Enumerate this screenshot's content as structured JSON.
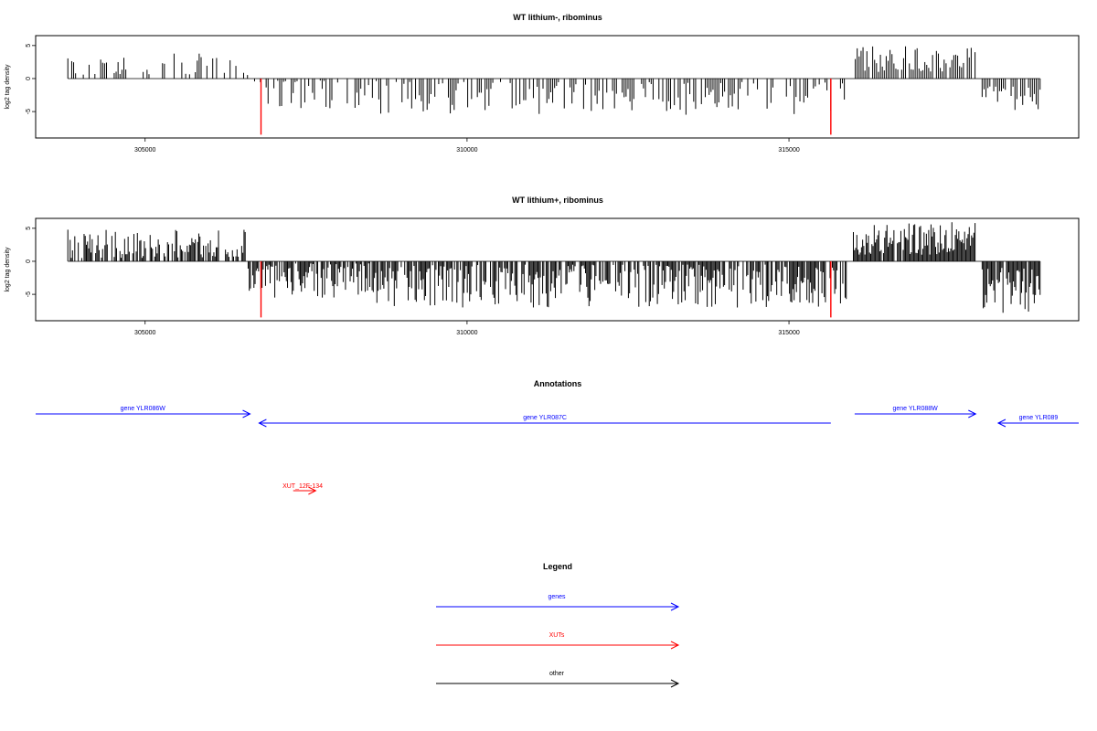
{
  "chart_data": [
    {
      "type": "bar",
      "title": "WT lithium-, ribominus",
      "ylabel": "log2 tag density",
      "xlim": [
        303300,
        319500
      ],
      "ylim": [
        -9,
        6.5
      ],
      "xticks": [
        305000,
        310000,
        315000
      ],
      "xtick_labels": [
        "305000",
        "310000",
        "315000"
      ],
      "yticks": [
        5,
        0,
        -5
      ],
      "ytick_labels": [
        "5",
        "0",
        "-5"
      ],
      "grid": false,
      "bar_color": "#000000",
      "highlight_color": "#ff0000",
      "highlights": [
        {
          "x": 306800,
          "value": -8.5
        },
        {
          "x": 315650,
          "value": -8.5
        }
      ],
      "bars_x_start": 303800,
      "bars_x_step": 30,
      "segments": [
        {
          "from": 303800,
          "to": 306600,
          "density": 0.35,
          "min": 0.5,
          "max": 3.8,
          "sign": 1
        },
        {
          "from": 306700,
          "to": 308600,
          "density": 0.55,
          "min": -4.5,
          "max": -0.3,
          "sign": -1
        },
        {
          "from": 308600,
          "to": 315900,
          "density": 0.6,
          "min": -5.5,
          "max": -0.5,
          "sign": -1
        },
        {
          "from": 316000,
          "to": 317900,
          "density": 0.85,
          "min": 1.0,
          "max": 5.0,
          "sign": 1
        },
        {
          "from": 318000,
          "to": 318900,
          "density": 0.8,
          "min": -5.0,
          "max": -1.0,
          "sign": -1
        }
      ],
      "seed": 17
    },
    {
      "type": "bar",
      "title": "WT lithium+, ribominus",
      "ylabel": "log2 tag density",
      "xlim": [
        303300,
        319500
      ],
      "ylim": [
        -9,
        6.5
      ],
      "xticks": [
        305000,
        310000,
        315000
      ],
      "xtick_labels": [
        "305000",
        "310000",
        "315000"
      ],
      "yticks": [
        5,
        0,
        -5
      ],
      "ytick_labels": [
        "5",
        "0",
        "-5"
      ],
      "grid": false,
      "bar_color": "#000000",
      "highlight_color": "#ff0000",
      "highlights": [
        {
          "x": 306800,
          "value": -8.5
        },
        {
          "x": 315650,
          "value": -8.5
        }
      ],
      "bars_x_start": 303800,
      "bars_x_step": 18,
      "segments": [
        {
          "from": 303800,
          "to": 306600,
          "density": 0.65,
          "min": 0.5,
          "max": 4.8,
          "sign": 1
        },
        {
          "from": 306600,
          "to": 308600,
          "density": 0.8,
          "min": -5.5,
          "max": -0.3,
          "sign": -1
        },
        {
          "from": 308600,
          "to": 315900,
          "density": 0.8,
          "min": -7.0,
          "max": -0.5,
          "sign": -1
        },
        {
          "from": 316000,
          "to": 317900,
          "density": 0.95,
          "min": 1.0,
          "max": 6.0,
          "sign": 1
        },
        {
          "from": 318000,
          "to": 318900,
          "density": 0.95,
          "min": -8.0,
          "max": -1.0,
          "sign": -1
        }
      ],
      "seed": 41
    }
  ],
  "annotations": {
    "title": "Annotations",
    "genes": [
      {
        "label": "gene YLR086W",
        "from": 303300,
        "to": 306630,
        "direction": "right",
        "row": 1,
        "color": "#0000ff"
      },
      {
        "label": "gene YLR087C",
        "from": 306770,
        "to": 315650,
        "direction": "left",
        "row": 2,
        "color": "#0000ff"
      },
      {
        "label": "gene YLR088W",
        "from": 316020,
        "to": 317900,
        "direction": "right",
        "row": 1,
        "color": "#0000ff"
      },
      {
        "label": "gene YLR089",
        "from": 318250,
        "to": 319500,
        "direction": "left",
        "row": 2,
        "color": "#0000ff"
      }
    ],
    "xuts": [
      {
        "label": "XUT_12F-134",
        "from": 307300,
        "to": 307650,
        "direction": "right",
        "color": "#ff0000"
      }
    ]
  },
  "legend": {
    "title": "Legend",
    "items": [
      {
        "label": "genes",
        "color": "#0000ff"
      },
      {
        "label": "XUTs",
        "color": "#ff0000"
      },
      {
        "label": "other",
        "color": "#000000"
      }
    ]
  }
}
